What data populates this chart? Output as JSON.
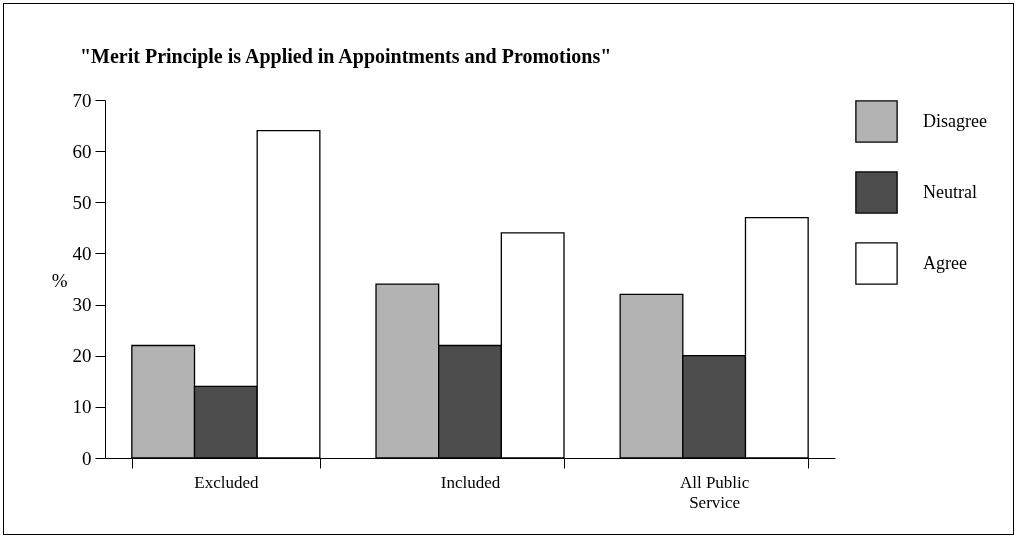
{
  "chart_data": {
    "type": "bar",
    "title": "\"Merit Principle is Applied in Appointments and Promotions\"",
    "ylabel": "%",
    "categories": [
      "Excluded",
      "Included",
      "All Public Service"
    ],
    "series": [
      {
        "name": "Disagree",
        "color": "#b3b3b3",
        "values": [
          22,
          34,
          32
        ]
      },
      {
        "name": "Neutral",
        "color": "#4d4d4d",
        "values": [
          14,
          22,
          20
        ]
      },
      {
        "name": "Agree",
        "color": "#ffffff",
        "values": [
          64,
          44,
          47
        ]
      }
    ],
    "ylim": [
      0,
      70
    ],
    "yticks": [
      0,
      10,
      20,
      30,
      40,
      50,
      60,
      70
    ],
    "grid": false,
    "legend": "right"
  }
}
